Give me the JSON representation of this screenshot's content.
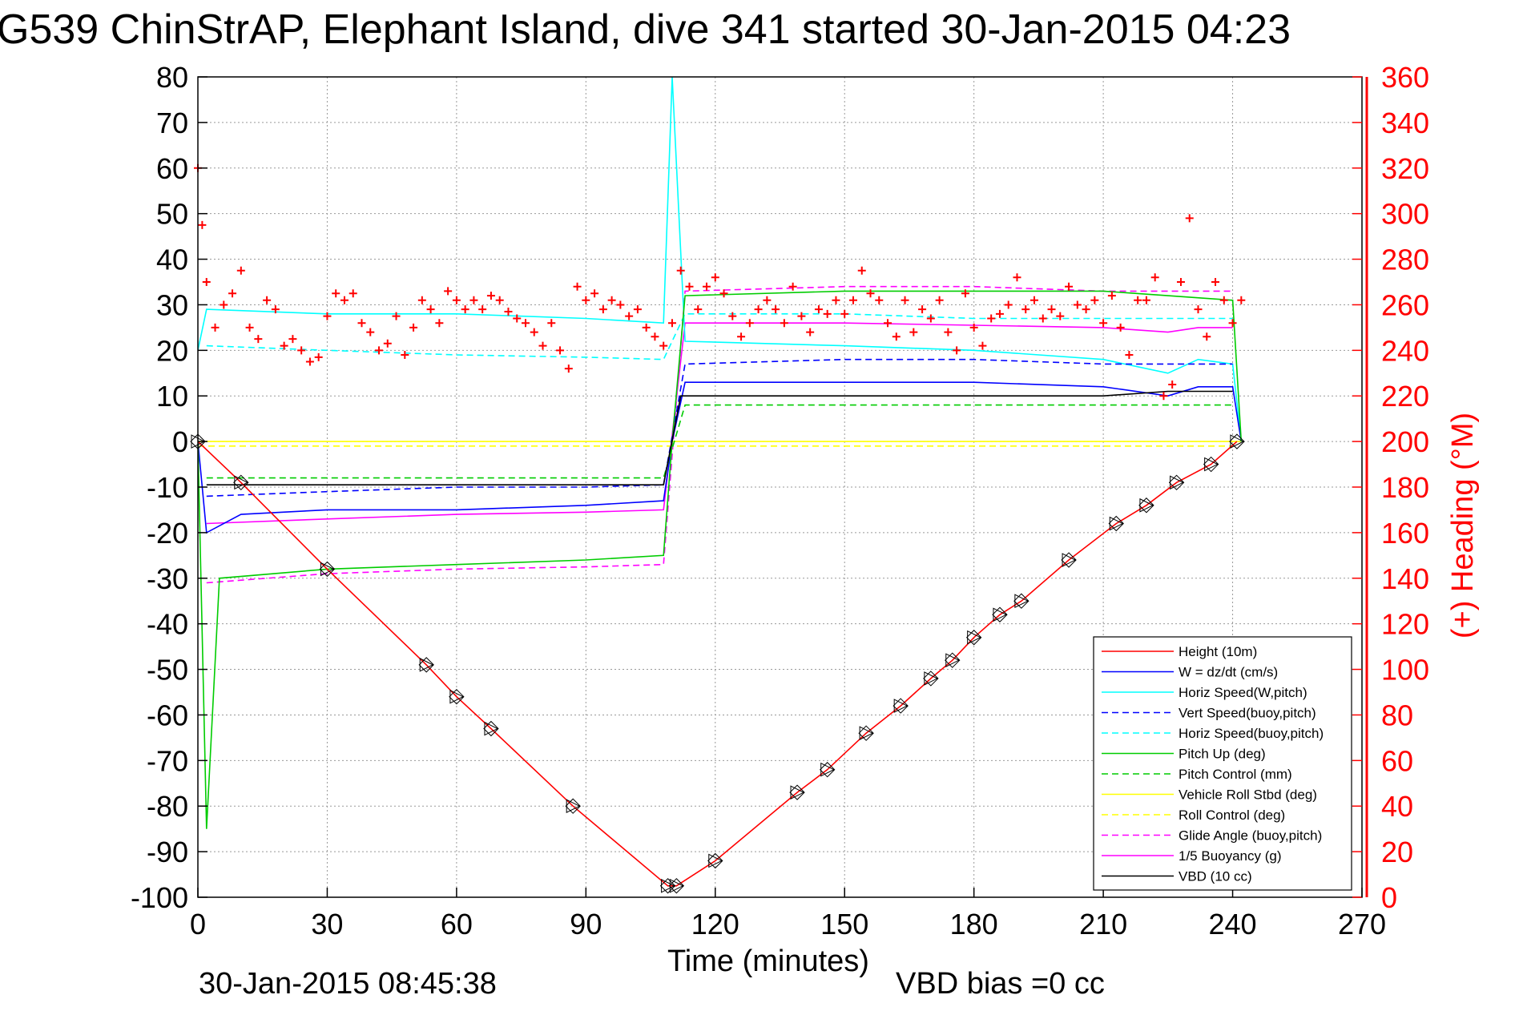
{
  "chart_data": {
    "type": "line",
    "title": "G539 ChinStrAP, Elephant Island, dive 341 started 30-Jan-2015 04:23",
    "xlabel": "Time (minutes)",
    "ylabel_right": "(+) Heading (°M)",
    "footer_left": "30-Jan-2015 08:45:38",
    "footer_right": "VBD bias =0 cc",
    "xlim": [
      0,
      270
    ],
    "ylim": [
      -100,
      80
    ],
    "ylim_right": [
      0,
      360
    ],
    "xticks": [
      0,
      30,
      60,
      90,
      120,
      150,
      180,
      210,
      240,
      270
    ],
    "yticks": [
      80,
      70,
      60,
      50,
      40,
      30,
      20,
      10,
      0,
      -10,
      -20,
      -30,
      -40,
      -50,
      -60,
      -70,
      -80,
      -90,
      -100
    ],
    "yticks_right": [
      360,
      340,
      320,
      300,
      280,
      260,
      240,
      220,
      200,
      180,
      160,
      140,
      120,
      100,
      80,
      60,
      40,
      20,
      0
    ],
    "grid": true,
    "legend_position": "bottom-right",
    "colors": {
      "right_axis": "#ff0000",
      "heading_marker": "#ff0000"
    },
    "series": [
      {
        "name": "Height (10m)",
        "color": "#ff0000",
        "style": "solid",
        "x": [
          0,
          10,
          30,
          53,
          60,
          68,
          87,
          109,
          111,
          120,
          139,
          146,
          155,
          163,
          170,
          175,
          180,
          186,
          191,
          202,
          213,
          220,
          227,
          235,
          241
        ],
        "y": [
          0,
          -9,
          -28,
          -49,
          -56,
          -63,
          -80,
          -97.5,
          -97.5,
          -92,
          -77,
          -72,
          -64,
          -58,
          -52,
          -48,
          -43,
          -38,
          -35,
          -26,
          -18,
          -14,
          -9,
          -5,
          0
        ]
      },
      {
        "name": "W = dz/dt (cm/s)",
        "color": "#0000ff",
        "style": "solid",
        "x": [
          0,
          2,
          10,
          30,
          60,
          90,
          108,
          110,
          113,
          120,
          150,
          180,
          210,
          225,
          232,
          240,
          242
        ],
        "y": [
          0,
          -20,
          -16,
          -15,
          -15,
          -14,
          -13,
          0,
          13,
          13,
          13,
          13,
          12,
          10,
          12,
          12,
          0
        ]
      },
      {
        "name": "Horiz Speed(W,pitch)",
        "color": "#00ffff",
        "style": "solid",
        "x": [
          0,
          2,
          30,
          60,
          90,
          108,
          110,
          113,
          150,
          180,
          210,
          225,
          232,
          240,
          242
        ],
        "y": [
          20,
          29,
          28,
          28,
          27,
          26,
          80,
          22,
          21,
          20,
          18,
          15,
          18,
          17,
          0
        ]
      },
      {
        "name": "Vert Speed(buoy,pitch)",
        "color": "#0000ff",
        "style": "dashed",
        "x": [
          2,
          30,
          60,
          90,
          108,
          113,
          150,
          180,
          210,
          240
        ],
        "y": [
          -12,
          -11,
          -10,
          -10,
          -9.5,
          17,
          18,
          18,
          17,
          17
        ]
      },
      {
        "name": "Horiz Speed(buoy,pitch)",
        "color": "#00ffff",
        "style": "dashed",
        "x": [
          2,
          30,
          60,
          90,
          108,
          113,
          150,
          180,
          210,
          240
        ],
        "y": [
          21,
          20,
          19,
          18.5,
          18,
          28,
          28,
          27,
          27,
          27
        ]
      },
      {
        "name": "Pitch Up (deg)",
        "color": "#00cc00",
        "style": "solid",
        "x": [
          0,
          2,
          5,
          30,
          60,
          90,
          108,
          110,
          113,
          150,
          180,
          210,
          225,
          240,
          242
        ],
        "y": [
          0,
          -85,
          -30,
          -28,
          -27,
          -26,
          -25,
          0,
          32,
          33,
          33,
          33,
          32,
          31,
          0
        ]
      },
      {
        "name": "Pitch Control (mm)",
        "color": "#00cc00",
        "style": "dashed",
        "x": [
          2,
          30,
          60,
          90,
          108,
          113,
          150,
          180,
          210,
          240
        ],
        "y": [
          -8,
          -8,
          -8,
          -8,
          -8,
          8,
          8,
          8,
          8,
          8
        ]
      },
      {
        "name": "Vehicle Roll Stbd (deg)",
        "color": "#ffff00",
        "style": "solid",
        "x": [
          0,
          10,
          30,
          60,
          90,
          108,
          113,
          150,
          180,
          210,
          240,
          242
        ],
        "y": [
          0,
          0,
          0,
          0,
          0,
          0,
          0,
          0,
          0,
          0,
          0,
          0
        ]
      },
      {
        "name": "Roll Control (deg)",
        "color": "#ffff00",
        "style": "dashed",
        "x": [
          0,
          30,
          60,
          90,
          108,
          113,
          150,
          180,
          210,
          240
        ],
        "y": [
          -1,
          -1,
          -1,
          -1,
          -1,
          -1,
          -1,
          -1,
          -1,
          -1
        ]
      },
      {
        "name": "Glide Angle (buoy,pitch)",
        "color": "#ff00ff",
        "style": "dashed",
        "x": [
          2,
          30,
          60,
          90,
          108,
          113,
          150,
          180,
          210,
          240
        ],
        "y": [
          -31,
          -29,
          -28,
          -27.5,
          -27,
          33,
          34,
          34,
          33,
          33
        ]
      },
      {
        "name": "1/5 Buoyancy (g)",
        "color": "#ff00ff",
        "style": "solid",
        "x": [
          2,
          30,
          60,
          90,
          108,
          113,
          150,
          180,
          210,
          225,
          232,
          240
        ],
        "y": [
          -18,
          -17,
          -16,
          -15.5,
          -15,
          26,
          26,
          25.5,
          25,
          24,
          25,
          25
        ]
      },
      {
        "name": "VBD (10 cc)",
        "color": "#000000",
        "style": "solid",
        "x": [
          2,
          30,
          60,
          90,
          108,
          112,
          150,
          180,
          210,
          225,
          240
        ],
        "y": [
          -9.5,
          -9.5,
          -9.5,
          -9.5,
          -9.5,
          10,
          10,
          10,
          10,
          11,
          11
        ]
      }
    ],
    "heading_points": {
      "name": "(+) Heading",
      "color": "#ff0000",
      "marker": "plus",
      "x": [
        0,
        1,
        2,
        4,
        6,
        8,
        10,
        12,
        14,
        16,
        18,
        20,
        22,
        24,
        26,
        28,
        30,
        32,
        34,
        36,
        38,
        40,
        42,
        44,
        46,
        48,
        50,
        52,
        54,
        56,
        58,
        60,
        62,
        64,
        66,
        68,
        70,
        72,
        74,
        76,
        78,
        80,
        82,
        84,
        86,
        88,
        90,
        92,
        94,
        96,
        98,
        100,
        102,
        104,
        106,
        108,
        110,
        112,
        114,
        116,
        118,
        120,
        122,
        124,
        126,
        128,
        130,
        132,
        134,
        136,
        138,
        140,
        142,
        144,
        146,
        148,
        150,
        152,
        154,
        156,
        158,
        160,
        162,
        164,
        166,
        168,
        170,
        172,
        174,
        176,
        178,
        180,
        182,
        184,
        186,
        188,
        190,
        192,
        194,
        196,
        198,
        200,
        202,
        204,
        206,
        208,
        210,
        212,
        214,
        216,
        218,
        220,
        222,
        224,
        226,
        228,
        230,
        232,
        234,
        236,
        238,
        240,
        242
      ],
      "y": [
        320,
        295,
        270,
        250,
        260,
        265,
        275,
        250,
        245,
        262,
        258,
        242,
        245,
        240,
        235,
        237,
        255,
        265,
        262,
        265,
        252,
        248,
        240,
        243,
        255,
        238,
        250,
        262,
        258,
        252,
        266,
        262,
        258,
        262,
        258,
        264,
        262,
        257,
        254,
        252,
        248,
        242,
        252,
        240,
        232,
        268,
        262,
        265,
        258,
        262,
        260,
        255,
        258,
        250,
        246,
        242,
        252,
        275,
        268,
        258,
        268,
        272,
        265,
        255,
        246,
        252,
        258,
        262,
        258,
        252,
        268,
        255,
        248,
        258,
        256,
        262,
        256,
        262,
        275,
        265,
        262,
        252,
        246,
        262,
        248,
        258,
        254,
        262,
        248,
        240,
        265,
        250,
        242,
        254,
        256,
        260,
        272,
        258,
        262,
        254,
        258,
        255,
        268,
        260,
        258,
        262,
        252,
        264,
        250,
        238,
        262,
        262,
        272,
        220,
        225,
        270,
        298,
        258,
        246,
        270,
        262,
        252,
        262
      ]
    }
  }
}
